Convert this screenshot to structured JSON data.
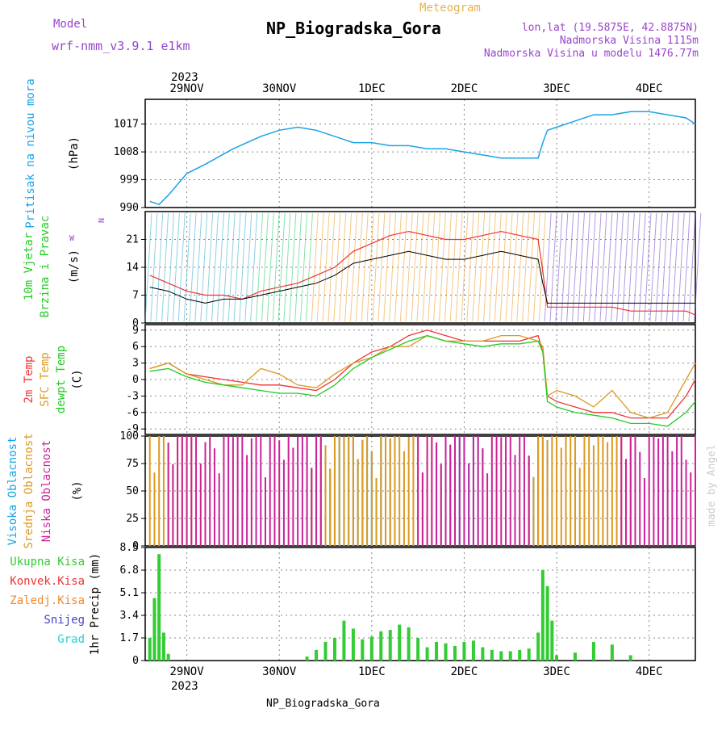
{
  "header": {
    "model_label": "Model",
    "model_name": "wrf-nmm_v3.9.1 e1km",
    "meteogram_label": "Meteogram",
    "title": "NP_Biogradska_Gora",
    "lonlat": "lon,lat (19.5875E, 42.8875N)",
    "altitude": "Nadmorska Visina 1115m",
    "model_altitude": "Nadmorska Visina u modelu 1476.77m",
    "footer": "NP_Biogradska_Gora",
    "watermark": "made by Angel",
    "year_top": "2023",
    "year_bottom": "2023"
  },
  "colors": {
    "pressure": "#1aa3e6",
    "temp2m": "#ee3333",
    "sfc": "#dd9922",
    "dewpt": "#22cc22",
    "high_cloud": "#1aa3e6",
    "mid_cloud": "#dd9922",
    "low_cloud": "#cc2299",
    "total_precip": "#33cc33",
    "conv_precip": "#ee3333",
    "freezing_precip": "#ee8833",
    "snow": "#4444cc",
    "hail": "#33cccc",
    "purple_text": "#9944cc",
    "orange_text": "#e6b34d"
  },
  "chart_data": [
    {
      "type": "line",
      "panel": "pressure",
      "ylabel": [
        "Pritisak na nivou mora",
        "(hPa)"
      ],
      "yticks": [
        990,
        999,
        1008,
        1017
      ],
      "ylim": [
        990,
        1025
      ],
      "x_days": [
        28.6,
        28.7,
        28.8,
        29.0,
        29.2,
        29.5,
        29.8,
        30.0,
        30.2,
        30.4,
        30.6,
        30.8,
        31.0,
        31.2,
        31.4,
        31.6,
        31.8,
        32.0,
        32.2,
        32.4,
        32.6,
        32.8,
        32.85,
        32.9,
        33.0,
        33.2,
        33.4,
        33.6,
        33.8,
        34.0,
        34.2,
        34.4,
        34.5
      ],
      "values": [
        992,
        991,
        994,
        1001,
        1004,
        1009,
        1013,
        1015,
        1016,
        1015,
        1013,
        1011,
        1011,
        1010,
        1010,
        1009,
        1009,
        1008,
        1007,
        1006,
        1006,
        1006,
        1011,
        1015,
        1016,
        1018,
        1020,
        1020,
        1021,
        1021,
        1020,
        1019,
        1017
      ]
    },
    {
      "type": "line",
      "panel": "wind",
      "ylabel": [
        "10m Vjetar",
        "Brzina i Pravac",
        "(m/s)"
      ],
      "compass": {
        "n": "N",
        "w": "W"
      },
      "yticks": [
        0,
        7,
        14,
        21
      ],
      "ylim": [
        0,
        28
      ],
      "x_days": [
        28.6,
        28.8,
        29.0,
        29.2,
        29.4,
        29.6,
        29.8,
        30.0,
        30.2,
        30.4,
        30.6,
        30.8,
        31.0,
        31.2,
        31.4,
        31.6,
        31.8,
        32.0,
        32.2,
        32.4,
        32.6,
        32.8,
        32.85,
        32.9,
        33.0,
        33.2,
        33.4,
        33.6,
        33.8,
        34.0,
        34.2,
        34.4,
        34.5
      ],
      "speed": [
        9,
        8,
        6,
        5,
        6,
        6,
        7,
        8,
        9,
        10,
        12,
        15,
        16,
        17,
        18,
        17,
        16,
        16,
        17,
        18,
        17,
        16,
        10,
        5,
        5,
        5,
        5,
        5,
        5,
        5,
        5,
        5,
        5
      ],
      "gust": [
        12,
        10,
        8,
        7,
        7,
        6,
        8,
        9,
        10,
        12,
        14,
        18,
        20,
        22,
        23,
        22,
        21,
        21,
        22,
        23,
        22,
        21,
        13,
        4,
        4,
        4,
        4,
        4,
        3,
        3,
        3,
        3,
        2
      ]
    },
    {
      "type": "line",
      "panel": "temperature",
      "ylabel": [
        "2m Temp",
        "SFC Temp",
        "dewpt Temp",
        "(C)"
      ],
      "yticks": [
        -9,
        -6,
        -3,
        0,
        3,
        6,
        9
      ],
      "ylim": [
        -10,
        10
      ],
      "x_days": [
        28.6,
        28.8,
        29.0,
        29.2,
        29.4,
        29.6,
        29.8,
        30.0,
        30.2,
        30.4,
        30.6,
        30.8,
        31.0,
        31.2,
        31.4,
        31.6,
        31.8,
        32.0,
        32.2,
        32.4,
        32.6,
        32.8,
        32.85,
        32.9,
        33.0,
        33.2,
        33.4,
        33.6,
        33.8,
        34.0,
        34.2,
        34.4,
        34.5
      ],
      "series": [
        {
          "name": "2m Temp",
          "values": [
            2,
            3,
            1,
            0.5,
            0,
            -0.5,
            -1,
            -1,
            -1.5,
            -2,
            0,
            3,
            5,
            6,
            8,
            9,
            8,
            7,
            7,
            7,
            7,
            8,
            5,
            -3,
            -4,
            -5,
            -6,
            -6,
            -7,
            -7,
            -7,
            -3,
            0
          ]
        },
        {
          "name": "SFC Temp",
          "values": [
            2,
            3,
            1,
            0,
            -1,
            -1,
            2,
            1,
            -1,
            -1.5,
            1,
            3,
            4,
            6,
            6,
            8,
            7,
            7,
            7,
            8,
            8,
            7,
            6,
            -3,
            -2,
            -3,
            -5,
            -2,
            -6,
            -7,
            -6,
            0,
            3
          ]
        },
        {
          "name": "dewpt Temp",
          "values": [
            1.5,
            2,
            0.5,
            -0.5,
            -1,
            -1.5,
            -2,
            -2.5,
            -2.5,
            -3,
            -1,
            2,
            4,
            5.5,
            7,
            8,
            7,
            6.5,
            6,
            6.5,
            6.5,
            7,
            5,
            -4,
            -5,
            -6,
            -6.5,
            -7,
            -8,
            -8,
            -8.5,
            -6,
            -4
          ]
        }
      ]
    },
    {
      "type": "bar",
      "panel": "cloud",
      "ylabel": [
        "Visoka Oblacnost",
        "Srednja Oblacnost",
        "Niska Oblacnost",
        "(%)"
      ],
      "yticks": [
        0,
        25,
        50,
        75,
        100
      ],
      "ylim": [
        0,
        100
      ],
      "high_ranges": [
        [
          30.35,
          31.25
        ],
        [
          31.7,
          32.2
        ],
        [
          32.7,
          32.9
        ]
      ],
      "mid_ranges": [
        [
          28.6,
          29.1
        ],
        [
          30.3,
          31.7
        ],
        [
          32.7,
          33.8
        ]
      ],
      "low_ranges": [
        [
          28.8,
          30.5
        ],
        [
          31.5,
          32.7
        ],
        [
          33.7,
          34.5
        ]
      ]
    },
    {
      "type": "bar",
      "panel": "precipitation",
      "ylabel": [
        "1hr Precip (mm)"
      ],
      "legend": [
        "Ukupna Kisa",
        "Konvek.Kisa",
        "Zaledj.Kisa",
        "Snijeg",
        "Grad"
      ],
      "yticks": [
        0,
        1.7,
        3.4,
        5.1,
        6.8,
        8.5
      ],
      "ylim": [
        0,
        8.5
      ],
      "x_days": [
        28.6,
        28.65,
        28.7,
        28.75,
        28.8,
        30.3,
        30.4,
        30.5,
        30.6,
        30.7,
        30.8,
        30.9,
        31.0,
        31.1,
        31.2,
        31.3,
        31.4,
        31.5,
        31.6,
        31.7,
        31.8,
        31.9,
        32.0,
        32.1,
        32.2,
        32.3,
        32.4,
        32.5,
        32.6,
        32.7,
        32.8,
        32.85,
        32.9,
        32.95,
        33.0,
        33.2,
        33.4,
        33.6,
        33.8
      ],
      "values": [
        1.7,
        4.7,
        8.0,
        2.1,
        0.5,
        0.3,
        0.8,
        1.4,
        1.7,
        3.0,
        2.4,
        1.6,
        1.8,
        2.2,
        2.3,
        2.7,
        2.5,
        1.7,
        1.0,
        1.4,
        1.3,
        1.1,
        1.4,
        1.5,
        1.0,
        0.8,
        0.7,
        0.7,
        0.8,
        0.9,
        2.1,
        6.8,
        5.6,
        3.0,
        0.4,
        0.6,
        1.4,
        1.2,
        0.4
      ]
    }
  ],
  "time_axis": {
    "day_labels": [
      "29NOV",
      "30NOV",
      "1DEC",
      "2DEC",
      "3DEC",
      "4DEC"
    ],
    "day_positions": [
      29,
      30,
      31,
      32,
      33,
      34
    ],
    "xlim": [
      28.55,
      34.5
    ]
  }
}
